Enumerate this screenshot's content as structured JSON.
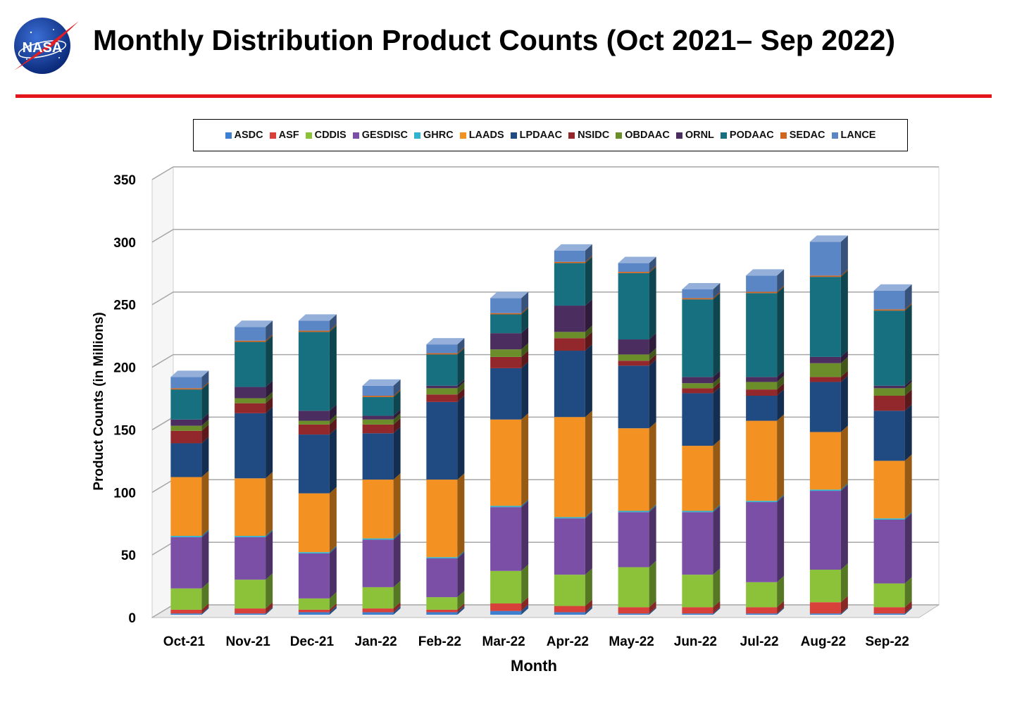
{
  "header": {
    "title": "Monthly Distribution Product Counts (Oct 2021– Sep 2022)",
    "logo_text": "NASA"
  },
  "colors": {
    "accent_rule": "#e3161b",
    "ASDC": "#3f7fd0",
    "ASF": "#d8403a",
    "CDDIS": "#8bc23a",
    "GESDISC": "#7b4fa6",
    "GHRC": "#2eb4cf",
    "LAADS": "#f39122",
    "LPDAAC": "#1f4a82",
    "NSIDC": "#93282c",
    "OBDAAC": "#6b8e2a",
    "ORNL": "#4b2d5f",
    "PODAAC": "#177080",
    "SEDAC": "#d0661d",
    "LANCE": "#5b86c6"
  },
  "chart_data": {
    "type": "bar",
    "stacked": true,
    "style": "3d",
    "title": "",
    "xlabel": "Month",
    "ylabel": "Product Counts (in Millions)",
    "ylim": [
      0,
      350
    ],
    "yticks": [
      0,
      50,
      100,
      150,
      200,
      250,
      300,
      350
    ],
    "grid": true,
    "legend_position": "top",
    "categories": [
      "Oct-21",
      "Nov-21",
      "Dec-21",
      "Jan-22",
      "Feb-22",
      "Mar-22",
      "Apr-22",
      "May-22",
      "Jun-22",
      "Jul-22",
      "Aug-22",
      "Sep-22"
    ],
    "series": [
      {
        "name": "ASDC",
        "values": [
          1,
          1,
          2,
          2,
          2,
          3,
          2,
          1,
          1,
          1,
          1,
          1
        ]
      },
      {
        "name": "ASF",
        "values": [
          3,
          4,
          2,
          3,
          2,
          6,
          5,
          5,
          5,
          5,
          9,
          5
        ]
      },
      {
        "name": "CDDIS",
        "values": [
          17,
          23,
          9,
          17,
          10,
          26,
          25,
          32,
          26,
          20,
          26,
          19
        ]
      },
      {
        "name": "GESDISC",
        "values": [
          41,
          34,
          36,
          38,
          31,
          51,
          45,
          44,
          50,
          64,
          63,
          51
        ]
      },
      {
        "name": "GHRC",
        "values": [
          1,
          1,
          1,
          1,
          1,
          1,
          1,
          1,
          1,
          1,
          1,
          1
        ]
      },
      {
        "name": "LAADS",
        "values": [
          47,
          46,
          47,
          47,
          62,
          69,
          80,
          66,
          52,
          64,
          46,
          46
        ]
      },
      {
        "name": "LPDAAC",
        "values": [
          27,
          52,
          47,
          37,
          62,
          41,
          53,
          50,
          42,
          20,
          40,
          40
        ]
      },
      {
        "name": "NSIDC",
        "values": [
          10,
          8,
          8,
          7,
          6,
          9,
          10,
          4,
          4,
          5,
          4,
          12
        ]
      },
      {
        "name": "OBDAAC",
        "values": [
          4,
          4,
          3,
          4,
          5,
          6,
          5,
          5,
          4,
          6,
          11,
          6
        ]
      },
      {
        "name": "ORNL",
        "values": [
          5,
          9,
          8,
          3,
          2,
          13,
          21,
          12,
          5,
          4,
          5,
          2
        ]
      },
      {
        "name": "PODAAC",
        "values": [
          24,
          36,
          63,
          15,
          25,
          15,
          34,
          53,
          62,
          67,
          64,
          60
        ]
      },
      {
        "name": "SEDAC",
        "values": [
          1,
          1,
          1,
          1,
          1,
          1,
          1,
          1,
          1,
          1,
          1,
          1
        ]
      },
      {
        "name": "LANCE",
        "values": [
          9,
          11,
          8,
          8,
          7,
          12,
          9,
          7,
          7,
          13,
          27,
          15
        ]
      }
    ]
  }
}
